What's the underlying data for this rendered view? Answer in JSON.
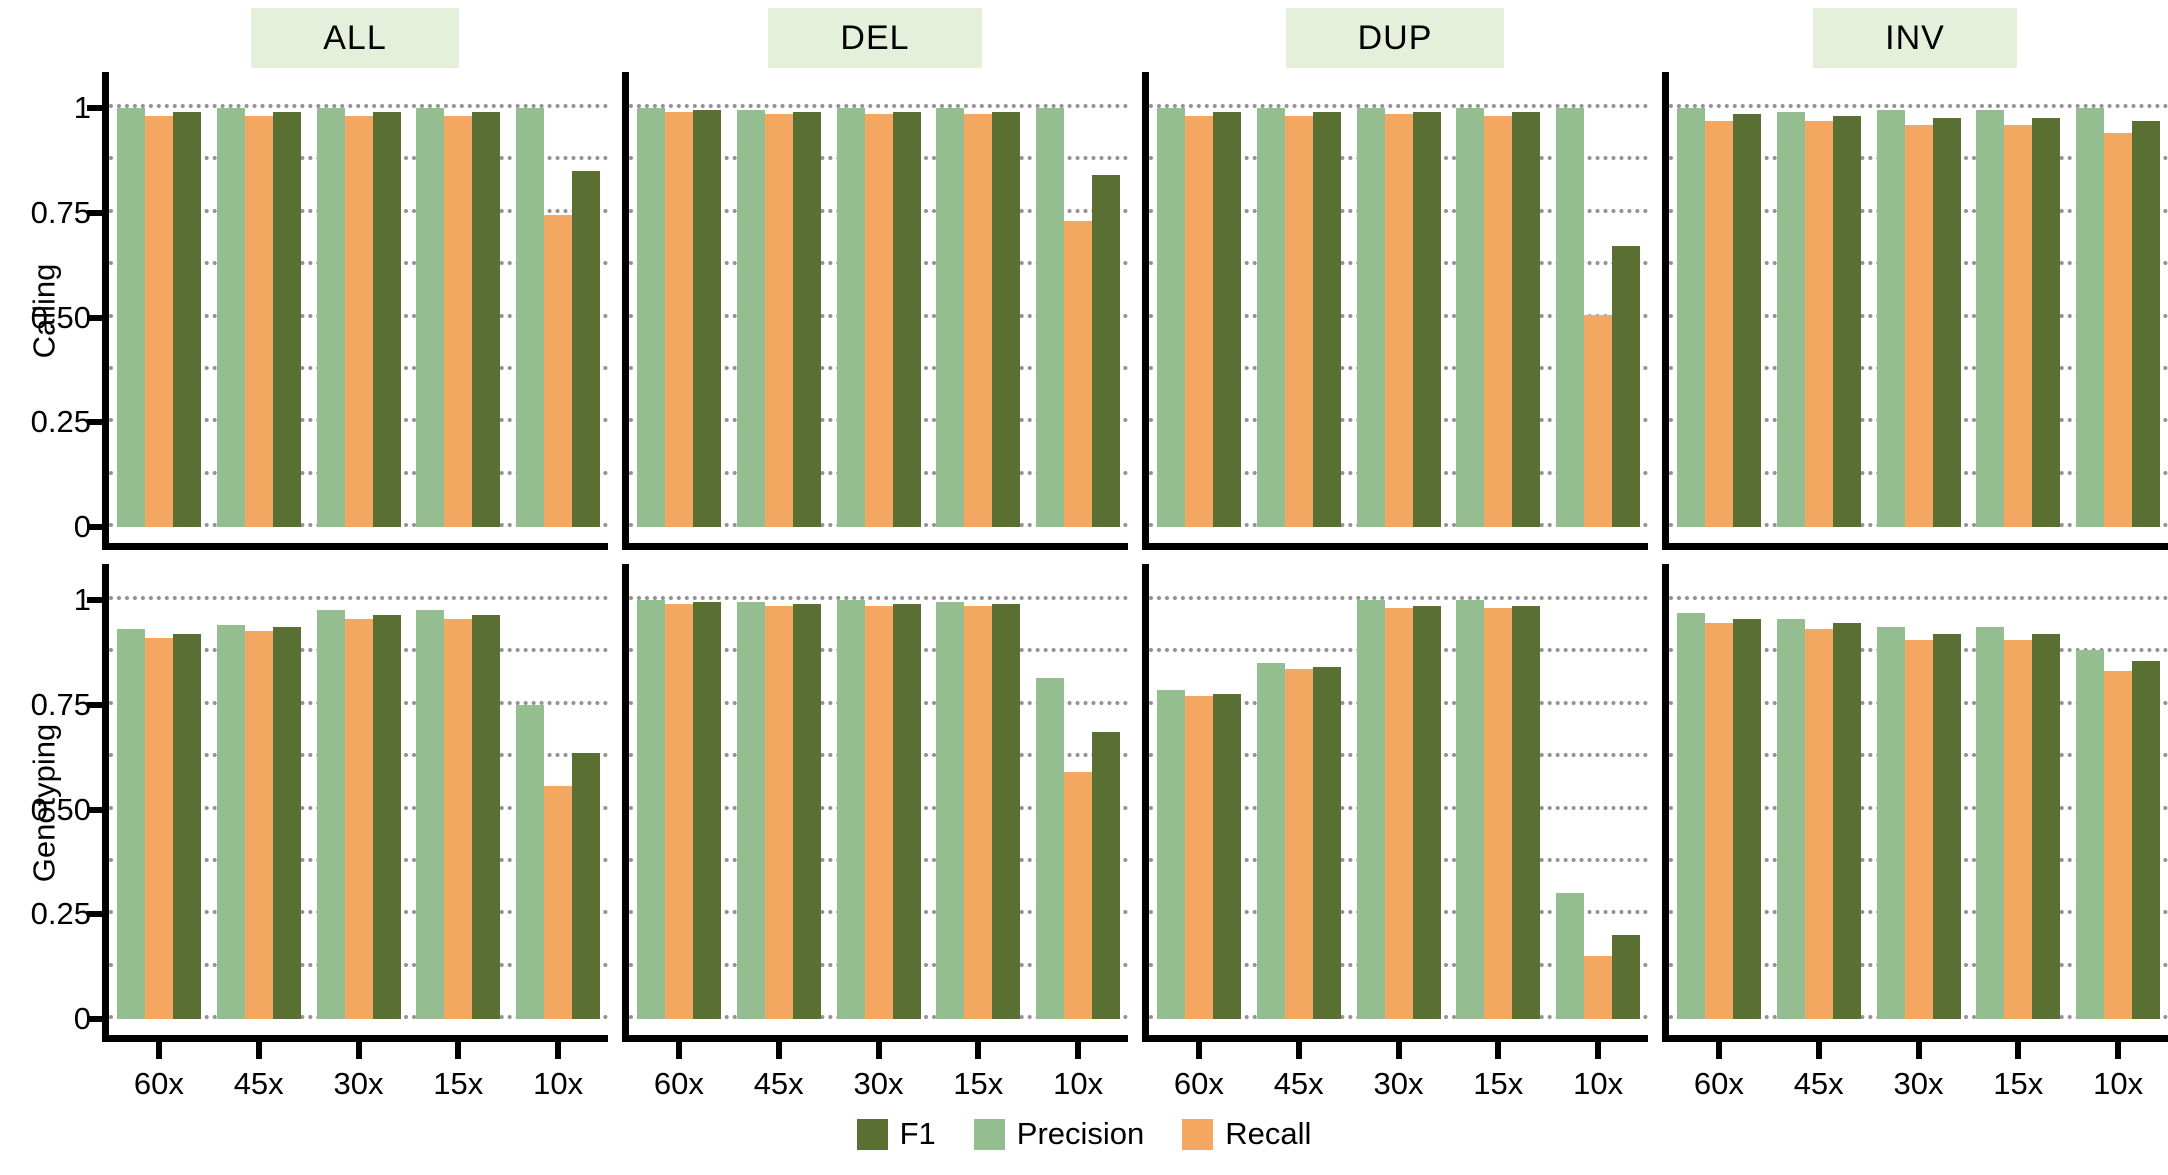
{
  "figure_title": "",
  "row_labels": {
    "top": "Calling",
    "bottom": "Genotyping"
  },
  "facets": [
    "ALL",
    "DEL",
    "DUP",
    "INV"
  ],
  "x_categories": [
    "60x",
    "45x",
    "30x",
    "15x",
    "10x"
  ],
  "y_axis": {
    "ticks": [
      {
        "label": "1",
        "value": 1
      },
      {
        "label": "0.75",
        "value": 0.75
      },
      {
        "label": "0.50",
        "value": 0.5
      },
      {
        "label": "0.25",
        "value": 0.25
      },
      {
        "label": "0",
        "value": 0
      }
    ],
    "gridlines": [
      0,
      0.125,
      0.25,
      0.375,
      0.5,
      0.625,
      0.75,
      0.875,
      1
    ],
    "ylim": [
      0,
      1
    ]
  },
  "colors": {
    "F1": "#5a7033",
    "Precision": "#94be90",
    "Recall": "#f4a761",
    "strip_background": "#e4f0da",
    "gridline": "#818181",
    "axis": "#000000"
  },
  "legend": [
    {
      "label": "F1",
      "color": "#5a7033"
    },
    {
      "label": "Precision",
      "color": "#94be90"
    },
    {
      "label": "Recall",
      "color": "#f4a761"
    }
  ],
  "bar_order": [
    "Precision",
    "Recall",
    "F1"
  ],
  "chart_data": [
    {
      "type": "bar",
      "row": "Calling",
      "facet": "ALL",
      "categories": [
        "60x",
        "45x",
        "30x",
        "15x",
        "10x"
      ],
      "series": [
        {
          "name": "Precision",
          "values": [
            1.0,
            1.0,
            1.0,
            1.0,
            1.0
          ]
        },
        {
          "name": "Recall",
          "values": [
            0.98,
            0.98,
            0.98,
            0.98,
            0.745
          ]
        },
        {
          "name": "F1",
          "values": [
            0.99,
            0.99,
            0.99,
            0.99,
            0.85
          ]
        }
      ],
      "ylim": [
        0,
        1
      ]
    },
    {
      "type": "bar",
      "row": "Calling",
      "facet": "DEL",
      "categories": [
        "60x",
        "45x",
        "30x",
        "15x",
        "10x"
      ],
      "series": [
        {
          "name": "Precision",
          "values": [
            1.0,
            0.995,
            1.0,
            1.0,
            1.0
          ]
        },
        {
          "name": "Recall",
          "values": [
            0.99,
            0.985,
            0.985,
            0.985,
            0.73
          ]
        },
        {
          "name": "F1",
          "values": [
            0.995,
            0.99,
            0.99,
            0.99,
            0.84
          ]
        }
      ],
      "ylim": [
        0,
        1
      ]
    },
    {
      "type": "bar",
      "row": "Calling",
      "facet": "DUP",
      "categories": [
        "60x",
        "45x",
        "30x",
        "15x",
        "10x"
      ],
      "series": [
        {
          "name": "Precision",
          "values": [
            1.0,
            1.0,
            1.0,
            1.0,
            1.0
          ]
        },
        {
          "name": "Recall",
          "values": [
            0.98,
            0.98,
            0.985,
            0.98,
            0.505
          ]
        },
        {
          "name": "F1",
          "values": [
            0.99,
            0.99,
            0.99,
            0.99,
            0.67
          ]
        }
      ],
      "ylim": [
        0,
        1
      ]
    },
    {
      "type": "bar",
      "row": "Calling",
      "facet": "INV",
      "categories": [
        "60x",
        "45x",
        "30x",
        "15x",
        "10x"
      ],
      "series": [
        {
          "name": "Precision",
          "values": [
            1.0,
            0.99,
            0.995,
            0.995,
            1.0
          ]
        },
        {
          "name": "Recall",
          "values": [
            0.97,
            0.97,
            0.96,
            0.96,
            0.94
          ]
        },
        {
          "name": "F1",
          "values": [
            0.985,
            0.98,
            0.975,
            0.975,
            0.97
          ]
        }
      ],
      "ylim": [
        0,
        1
      ]
    },
    {
      "type": "bar",
      "row": "Genotyping",
      "facet": "ALL",
      "categories": [
        "60x",
        "45x",
        "30x",
        "15x",
        "10x"
      ],
      "series": [
        {
          "name": "Precision",
          "values": [
            0.93,
            0.94,
            0.975,
            0.975,
            0.75
          ]
        },
        {
          "name": "Recall",
          "values": [
            0.91,
            0.925,
            0.955,
            0.955,
            0.555
          ]
        },
        {
          "name": "F1",
          "values": [
            0.92,
            0.935,
            0.965,
            0.965,
            0.635
          ]
        }
      ],
      "ylim": [
        0,
        1
      ]
    },
    {
      "type": "bar",
      "row": "Genotyping",
      "facet": "DEL",
      "categories": [
        "60x",
        "45x",
        "30x",
        "15x",
        "10x"
      ],
      "series": [
        {
          "name": "Precision",
          "values": [
            1.0,
            0.995,
            1.0,
            0.995,
            0.815
          ]
        },
        {
          "name": "Recall",
          "values": [
            0.99,
            0.985,
            0.985,
            0.985,
            0.59
          ]
        },
        {
          "name": "F1",
          "values": [
            0.995,
            0.99,
            0.99,
            0.99,
            0.685
          ]
        }
      ],
      "ylim": [
        0,
        1
      ]
    },
    {
      "type": "bar",
      "row": "Genotyping",
      "facet": "DUP",
      "categories": [
        "60x",
        "45x",
        "30x",
        "15x",
        "10x"
      ],
      "series": [
        {
          "name": "Precision",
          "values": [
            0.785,
            0.85,
            1.0,
            1.0,
            0.3
          ]
        },
        {
          "name": "Recall",
          "values": [
            0.77,
            0.835,
            0.98,
            0.98,
            0.15
          ]
        },
        {
          "name": "F1",
          "values": [
            0.775,
            0.84,
            0.985,
            0.985,
            0.2
          ]
        }
      ],
      "ylim": [
        0,
        1
      ]
    },
    {
      "type": "bar",
      "row": "Genotyping",
      "facet": "INV",
      "categories": [
        "60x",
        "45x",
        "30x",
        "15x",
        "10x"
      ],
      "series": [
        {
          "name": "Precision",
          "values": [
            0.97,
            0.955,
            0.935,
            0.935,
            0.88
          ]
        },
        {
          "name": "Recall",
          "values": [
            0.945,
            0.93,
            0.905,
            0.905,
            0.83
          ]
        },
        {
          "name": "F1",
          "values": [
            0.955,
            0.945,
            0.92,
            0.92,
            0.855
          ]
        }
      ],
      "ylim": [
        0,
        1
      ]
    }
  ]
}
